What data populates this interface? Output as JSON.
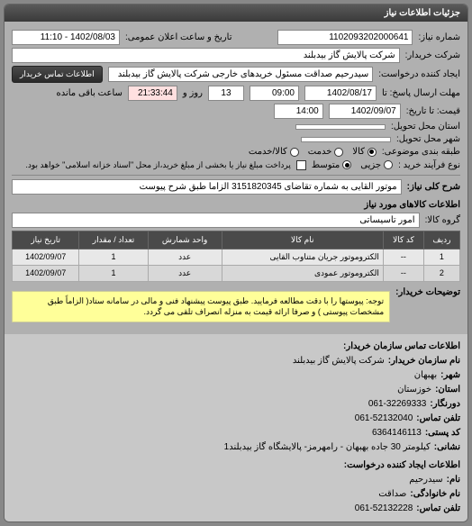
{
  "header": "جزئیات اطلاعات نیاز",
  "fields": {
    "request_no_label": "شماره نیاز:",
    "request_no": "1102093202000641",
    "public_datetime_label": "تاریخ و ساعت اعلان عمومی:",
    "public_datetime": "1402/08/03 - 11:10",
    "buyer_name_label": "شرکت خریدار:",
    "buyer_name": "شرکت پالایش گاز بیدبلند",
    "requester_label": "ایجاد کننده درخواست:",
    "requester": "سیدرحیم صداقت مسئول خریدهای خارجی شرکت پالایش گاز بیدبلند",
    "contact_btn": "اطلاعات تماس خریدار",
    "deadline_label": "مهلت ارسال پاسخ: تا",
    "deadline_date": "1402/08/17",
    "deadline_time": "09:00",
    "days_label": "روز و",
    "days": "13",
    "time_remain": "21:33:44",
    "time_remain_label": "ساعت باقی مانده",
    "price_until_label": "قیمت: تا تاریخ:",
    "price_date": "1402/09/07",
    "price_time": "14:00",
    "delivery_state_label": "استان محل تحویل:",
    "delivery_city_label": "شهر محل تحویل:",
    "grouping_label": "طبقه بندی موضوعی:",
    "grouping_opts": {
      "goods": "کالا",
      "service": "خدمت",
      "goods_service": "کالا/خدمت"
    },
    "process_label": "نوع فرآیند خرید :",
    "process_opts": {
      "minor": "جزیی",
      "medium": "متوسط"
    },
    "process_note": "پرداخت مبلغ نیاز یا بخشی از مبلغ خرید،از محل \"اسناد خزانه اسلامی\" خواهد بود.",
    "desc_label": "شرح کلی نیاز:",
    "desc": "موتور القایی به شماره تقاضای 3151820345 الزاما طبق شرح پیوست",
    "goods_info_title": "اطلاعات کالاهای مورد نیاز",
    "group_label": "گروه کالا:",
    "group": "امور تاسیساتی",
    "table": {
      "columns": [
        "ردیف",
        "کد کالا",
        "نام کالا",
        "واحد شمارش",
        "تعداد / مقدار",
        "تاریخ نیاز"
      ],
      "rows": [
        [
          "1",
          "--",
          "الکتروموتور جریان متناوب القایی",
          "عدد",
          "1",
          "1402/09/07"
        ],
        [
          "2",
          "--",
          "الکتروموتور عمودی",
          "عدد",
          "1",
          "1402/09/07"
        ]
      ]
    },
    "buyer_notes_label": "توضیحات خریدار:",
    "buyer_notes": "توجه: پیوستها را با دقت مطالعه فرمایید. طبق پیوست پیشنهاد فنی و مالی در سامانه ستاد( الزاماً طبق مشخصات پیوستی ) و صرفا ارائه قیمت به منزله انصراف تلقی می گردد."
  },
  "contact": {
    "header": "اطلاعات تماس سازمان خریدار:",
    "lines": [
      {
        "k": "نام سازمان خریدار:",
        "v": "شرکت پالایش گاز بیدبلند"
      },
      {
        "k": "شهر:",
        "v": "بهبهان"
      },
      {
        "k": "استان:",
        "v": "خوزستان"
      },
      {
        "k": "دورنگار:",
        "v": "061-32269333"
      },
      {
        "k": "تلفن تماس:",
        "v": "061-52132040"
      },
      {
        "k": "کد پستی:",
        "v": "6364146113"
      },
      {
        "k": "نشانی:",
        "v": "کیلومتر 30 جاده بهبهان - رامهرمز- پالایشگاه گاز بیدبلند1"
      }
    ],
    "creator_header": "اطلاعات ایجاد کننده درخواست:",
    "creator_lines": [
      {
        "k": "نام:",
        "v": "سیدرحیم"
      },
      {
        "k": "نام خانوادگی:",
        "v": "صداقت"
      },
      {
        "k": "تلفن تماس:",
        "v": "061-52132228"
      }
    ]
  }
}
